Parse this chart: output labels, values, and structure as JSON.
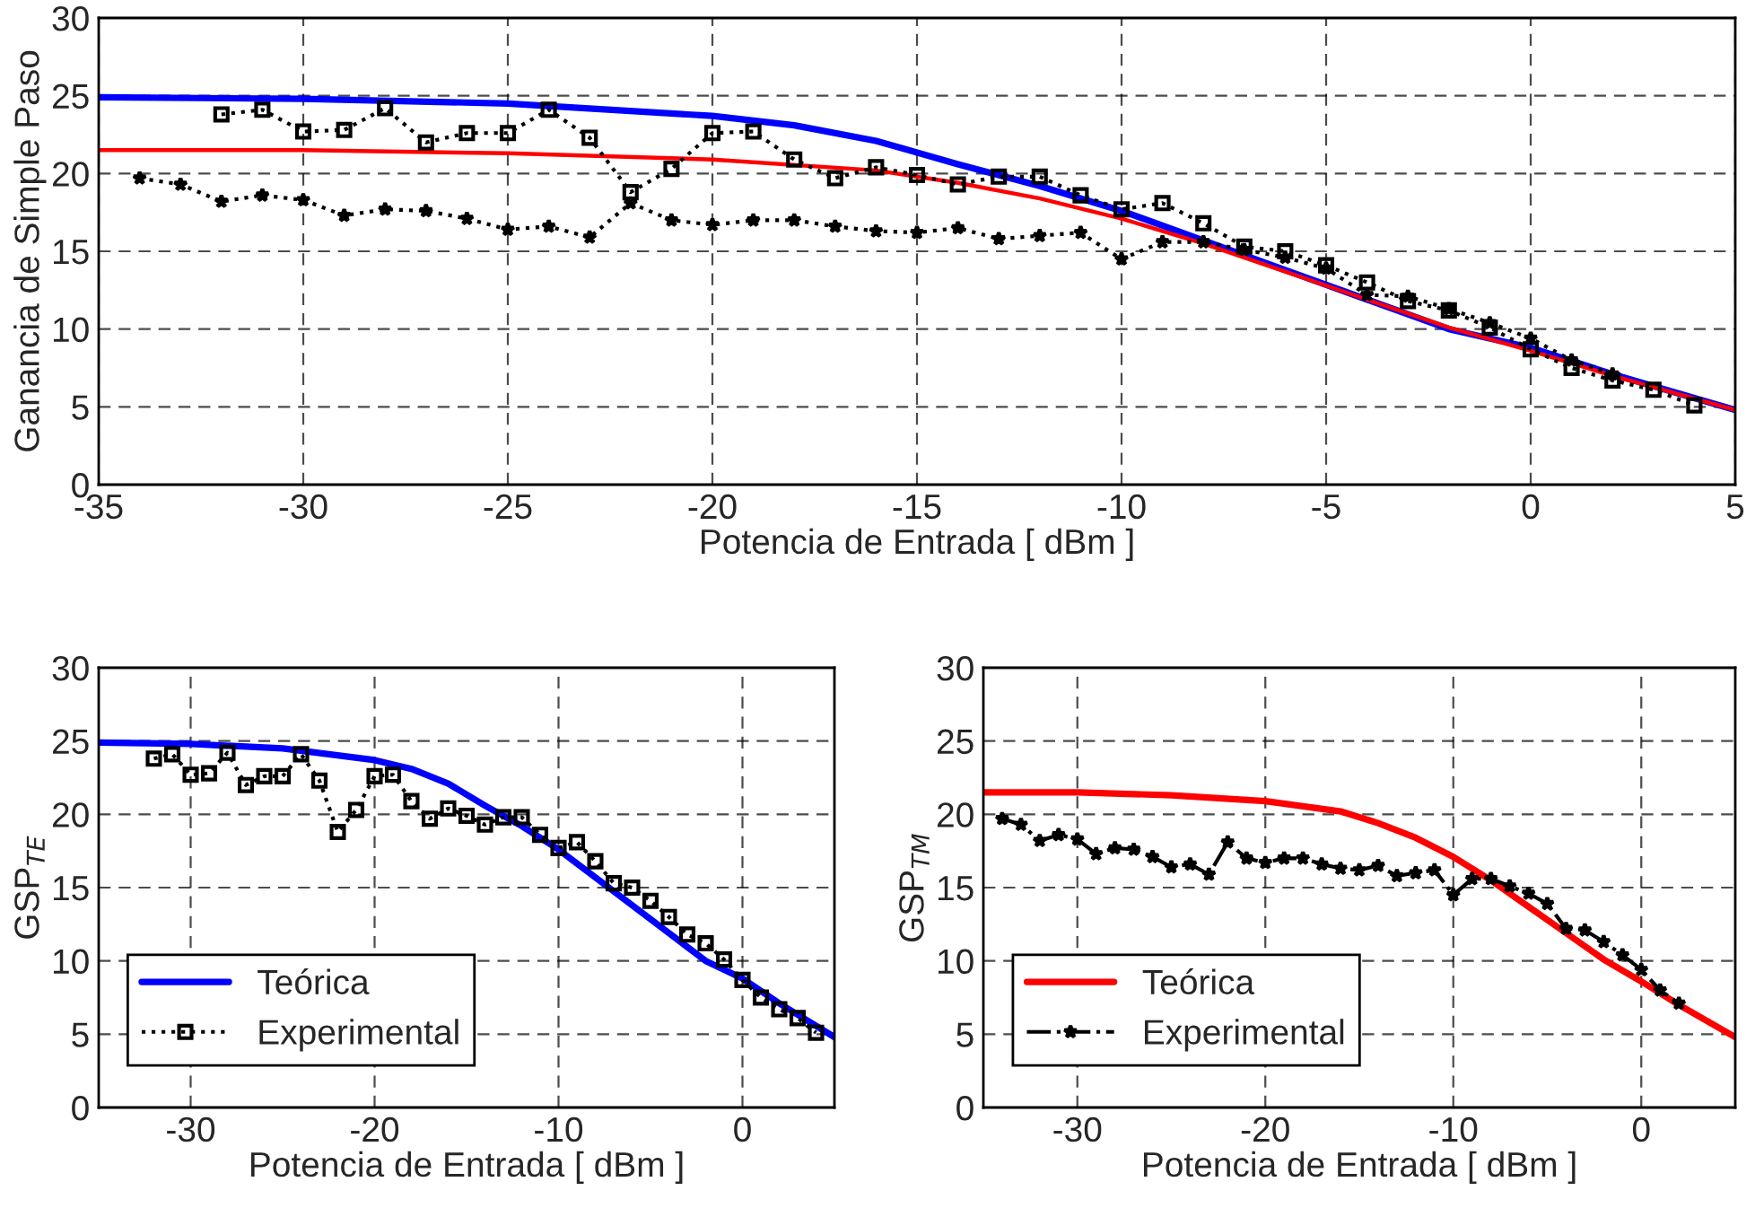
{
  "chart_data": [
    {
      "type": "line",
      "xlabel": "Potencia de Entrada [ dBm ]",
      "ylabel": "Ganancia de Simple Paso",
      "xlim": [
        -35,
        5
      ],
      "ylim": [
        0,
        30
      ],
      "xticks": [
        -35,
        -30,
        -25,
        -20,
        -15,
        -10,
        -5,
        0,
        5
      ],
      "yticks": [
        0,
        5,
        10,
        15,
        20,
        25,
        30
      ],
      "grid": true,
      "legend": false,
      "series": [
        {
          "color": "#0000ff",
          "line_style": "solid",
          "marker": "none",
          "x": [
            -35,
            -30,
            -25,
            -20,
            -18,
            -16,
            -14,
            -12,
            -10,
            -8,
            -6,
            -4,
            -2,
            0,
            2,
            5
          ],
          "values": [
            24.9,
            24.8,
            24.5,
            23.7,
            23.1,
            22.1,
            20.6,
            19.2,
            17.6,
            15.7,
            13.8,
            11.9,
            10.0,
            8.8,
            7.1,
            4.8
          ]
        },
        {
          "color": "#ff0000",
          "line_style": "solid",
          "marker": "none",
          "x": [
            -35,
            -30,
            -25,
            -20,
            -16,
            -14,
            -12,
            -10,
            -8,
            -6,
            -4,
            -2,
            0,
            2,
            5
          ],
          "values": [
            21.5,
            21.5,
            21.3,
            20.9,
            20.2,
            19.4,
            18.4,
            17.1,
            15.5,
            13.7,
            11.9,
            10.1,
            8.6,
            7.0,
            4.8
          ]
        },
        {
          "color": "#000000",
          "line_style": "dotted",
          "marker": "square",
          "x": [
            -32,
            -31,
            -30,
            -29,
            -28,
            -27,
            -26,
            -25,
            -24,
            -23,
            -22,
            -21,
            -20,
            -19,
            -18,
            -17,
            -16,
            -15,
            -14,
            -13,
            -12,
            -11,
            -10,
            -9,
            -8,
            -7,
            -6,
            -5,
            -4,
            -3,
            -2,
            -1,
            0,
            1,
            2,
            3,
            4
          ],
          "values": [
            23.8,
            24.1,
            22.7,
            22.8,
            24.2,
            22.0,
            22.6,
            22.6,
            24.1,
            22.3,
            18.8,
            20.3,
            22.6,
            22.7,
            20.9,
            19.7,
            20.4,
            19.9,
            19.3,
            19.8,
            19.8,
            18.6,
            17.7,
            18.1,
            16.8,
            15.3,
            15.0,
            14.1,
            13.0,
            11.8,
            11.2,
            10.1,
            8.7,
            7.5,
            6.7,
            6.1,
            5.1
          ]
        },
        {
          "color": "#000000",
          "line_style": "dotted",
          "marker": "star",
          "x": [
            -34,
            -33,
            -32,
            -31,
            -30,
            -29,
            -28,
            -27,
            -26,
            -25,
            -24,
            -23,
            -22,
            -21,
            -20,
            -19,
            -18,
            -17,
            -16,
            -15,
            -14,
            -13,
            -12,
            -11,
            -10,
            -9,
            -8,
            -7,
            -6,
            -5,
            -4,
            -3,
            -2,
            -1,
            0,
            1,
            2
          ],
          "values": [
            19.7,
            19.3,
            18.2,
            18.6,
            18.3,
            17.3,
            17.7,
            17.6,
            17.1,
            16.4,
            16.6,
            15.9,
            18.1,
            17.0,
            16.7,
            17.0,
            17.0,
            16.6,
            16.3,
            16.2,
            16.5,
            15.8,
            16.0,
            16.2,
            14.5,
            15.6,
            15.6,
            15.1,
            14.6,
            13.9,
            12.2,
            12.1,
            11.3,
            10.4,
            9.4,
            8.0,
            7.1
          ]
        }
      ]
    },
    {
      "type": "line",
      "xlabel": "Potencia de Entrada [ dBm ]",
      "ylabel": "GSP$_{TE}$",
      "xlim": [
        -35,
        5
      ],
      "ylim": [
        0,
        30
      ],
      "xticks": [
        -30,
        -20,
        -10,
        0
      ],
      "yticks": [
        0,
        5,
        10,
        15,
        20,
        25,
        30
      ],
      "grid": true,
      "legend": "lower left",
      "series": [
        {
          "name": "Teórica",
          "color": "#0000ff",
          "line_style": "solid",
          "marker": "none",
          "x": [
            -35,
            -30,
            -25,
            -20,
            -18,
            -16,
            -14,
            -12,
            -10,
            -8,
            -6,
            -4,
            -2,
            0,
            2,
            5
          ],
          "values": [
            24.9,
            24.8,
            24.5,
            23.7,
            23.1,
            22.1,
            20.6,
            19.2,
            17.6,
            15.7,
            13.8,
            11.9,
            10.0,
            8.8,
            7.1,
            4.8
          ]
        },
        {
          "name": "Experimental",
          "color": "#000000",
          "line_style": "dotted",
          "marker": "square",
          "x": [
            -32,
            -31,
            -30,
            -29,
            -28,
            -27,
            -26,
            -25,
            -24,
            -23,
            -22,
            -21,
            -20,
            -19,
            -18,
            -17,
            -16,
            -15,
            -14,
            -13,
            -12,
            -11,
            -10,
            -9,
            -8,
            -7,
            -6,
            -5,
            -4,
            -3,
            -2,
            -1,
            0,
            1,
            2,
            3,
            4
          ],
          "values": [
            23.8,
            24.1,
            22.7,
            22.8,
            24.2,
            22.0,
            22.6,
            22.6,
            24.1,
            22.3,
            18.8,
            20.3,
            22.6,
            22.7,
            20.9,
            19.7,
            20.4,
            19.9,
            19.3,
            19.8,
            19.8,
            18.6,
            17.7,
            18.1,
            16.8,
            15.3,
            15.0,
            14.1,
            13.0,
            11.8,
            11.2,
            10.1,
            8.7,
            7.5,
            6.7,
            6.1,
            5.1
          ]
        }
      ]
    },
    {
      "type": "line",
      "xlabel": "Potencia de Entrada [ dBm ]",
      "ylabel": "GSP$_{TM}$",
      "xlim": [
        -35,
        5
      ],
      "ylim": [
        0,
        30
      ],
      "xticks": [
        -30,
        -20,
        -10,
        0
      ],
      "yticks": [
        0,
        5,
        10,
        15,
        20,
        25,
        30
      ],
      "grid": true,
      "legend": "lower left",
      "series": [
        {
          "name": "Teórica",
          "color": "#ff0000",
          "line_style": "solid",
          "marker": "none",
          "x": [
            -35,
            -30,
            -25,
            -20,
            -16,
            -14,
            -12,
            -10,
            -8,
            -6,
            -4,
            -2,
            0,
            2,
            5
          ],
          "values": [
            21.5,
            21.5,
            21.3,
            20.9,
            20.2,
            19.4,
            18.4,
            17.1,
            15.5,
            13.7,
            11.9,
            10.1,
            8.6,
            7.0,
            4.8
          ]
        },
        {
          "name": "Experimental",
          "color": "#000000",
          "line_style": "dashdot",
          "marker": "star",
          "x": [
            -34,
            -33,
            -32,
            -31,
            -30,
            -29,
            -28,
            -27,
            -26,
            -25,
            -24,
            -23,
            -22,
            -21,
            -20,
            -19,
            -18,
            -17,
            -16,
            -15,
            -14,
            -13,
            -12,
            -11,
            -10,
            -9,
            -8,
            -7,
            -6,
            -5,
            -4,
            -3,
            -2,
            -1,
            0,
            1,
            2
          ],
          "values": [
            19.7,
            19.3,
            18.2,
            18.6,
            18.3,
            17.3,
            17.7,
            17.6,
            17.1,
            16.4,
            16.6,
            15.9,
            18.1,
            17.0,
            16.7,
            17.0,
            17.0,
            16.6,
            16.3,
            16.2,
            16.5,
            15.8,
            16.0,
            16.2,
            14.5,
            15.6,
            15.6,
            15.1,
            14.6,
            13.9,
            12.2,
            12.1,
            11.3,
            10.4,
            9.4,
            8.0,
            7.1
          ]
        }
      ]
    }
  ]
}
